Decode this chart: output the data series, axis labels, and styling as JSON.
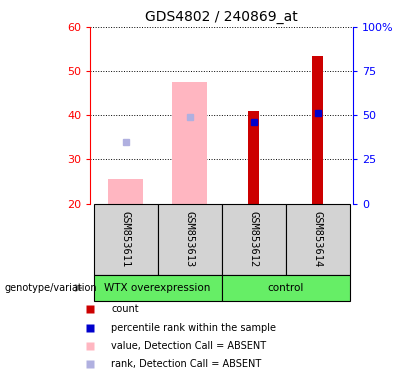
{
  "title": "GDS4802 / 240869_at",
  "samples": [
    "GSM853611",
    "GSM853613",
    "GSM853612",
    "GSM853614"
  ],
  "ylim_left": [
    20,
    60
  ],
  "ylim_right": [
    0,
    100
  ],
  "yticks_left": [
    20,
    30,
    40,
    50,
    60
  ],
  "yticks_right": [
    0,
    25,
    50,
    75,
    100
  ],
  "ytick_labels_right": [
    "0",
    "25",
    "50",
    "75",
    "100%"
  ],
  "bar_bottom": 20,
  "pink_bars": {
    "0": 25.5,
    "1": 47.5
  },
  "red_bars": {
    "2": 41.0,
    "3": 53.5
  },
  "blue_squares": {
    "2": 38.5,
    "3": 40.5
  },
  "lavender_squares": {
    "0": 34.0,
    "1": 39.5
  },
  "group_bg": "#66ee66",
  "sample_bg": "#d3d3d3",
  "pink_color": "#ffb6c1",
  "red_color": "#cc0000",
  "blue_color": "#0000cc",
  "lavender_color": "#b0b0e0",
  "legend_items": [
    {
      "label": "count",
      "color": "#cc0000"
    },
    {
      "label": "percentile rank within the sample",
      "color": "#0000cc"
    },
    {
      "label": "value, Detection Call = ABSENT",
      "color": "#ffb6c1"
    },
    {
      "label": "rank, Detection Call = ABSENT",
      "color": "#b0b0e0"
    }
  ]
}
